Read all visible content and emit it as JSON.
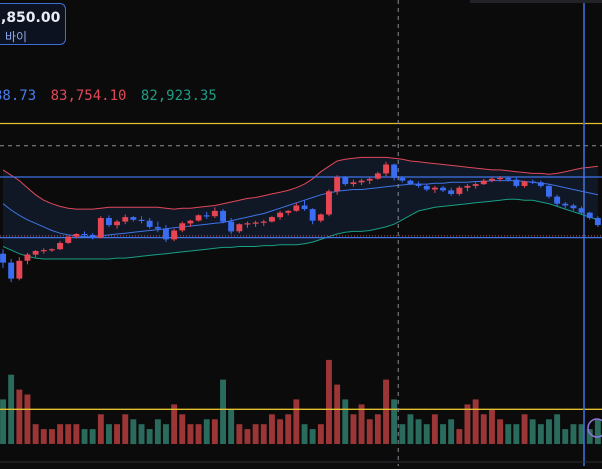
{
  "buy_box": {
    "price": ",850.00",
    "label": "바이"
  },
  "legend": [
    {
      "text": "38.73",
      "color": "#4a7cf0"
    },
    {
      "text": "83,754.10",
      "color": "#e0485a"
    },
    {
      "text": "82,923.35",
      "color": "#1f9c86"
    }
  ],
  "volume_pane_label": "2",
  "colors": {
    "background": "#0b0b0c",
    "up_candle": "#e64553",
    "down_candle": "#3b6df2",
    "bb_upper": "#e0485a",
    "bb_middle": "#3f74e6",
    "bb_lower": "#18a083",
    "horizontal_line": "#3f74e6",
    "yellow_line": "#e2c12c",
    "volume_up": "#9c3535",
    "volume_down": "#2a6b5e",
    "cursor_line": "#3f6fd8"
  },
  "chart_data": {
    "type": "candlestick",
    "title": "",
    "ylim": [
      82300,
      84600
    ],
    "series": [
      {
        "name": "candles",
        "ohlc": [
          [
            82820,
            82870,
            82660,
            82720
          ],
          [
            82720,
            82760,
            82500,
            82540
          ],
          [
            82540,
            82780,
            82520,
            82740
          ],
          [
            82740,
            82830,
            82700,
            82810
          ],
          [
            82810,
            82860,
            82780,
            82850
          ],
          [
            82850,
            82880,
            82820,
            82860
          ],
          [
            82860,
            82880,
            82840,
            82870
          ],
          [
            82870,
            82960,
            82860,
            82940
          ],
          [
            82940,
            83020,
            82930,
            83010
          ],
          [
            83010,
            83050,
            82990,
            83040
          ],
          [
            83040,
            83070,
            83010,
            83030
          ],
          [
            83030,
            83050,
            82980,
            83000
          ],
          [
            83000,
            83240,
            82990,
            83220
          ],
          [
            83220,
            83250,
            83120,
            83140
          ],
          [
            83140,
            83200,
            83100,
            83180
          ],
          [
            83180,
            83260,
            83150,
            83230
          ],
          [
            83230,
            83240,
            83180,
            83200
          ],
          [
            83200,
            83240,
            83160,
            83190
          ],
          [
            83190,
            83220,
            83100,
            83120
          ],
          [
            83120,
            83180,
            83060,
            83100
          ],
          [
            83100,
            83140,
            82950,
            82980
          ],
          [
            82980,
            83100,
            82960,
            83080
          ],
          [
            83080,
            83180,
            83060,
            83160
          ],
          [
            83160,
            83200,
            83120,
            83190
          ],
          [
            83190,
            83260,
            83180,
            83250
          ],
          [
            83250,
            83290,
            83210,
            83240
          ],
          [
            83240,
            83340,
            83220,
            83300
          ],
          [
            83300,
            83320,
            83160,
            83180
          ],
          [
            83180,
            83220,
            83040,
            83070
          ],
          [
            83070,
            83160,
            83050,
            83150
          ],
          [
            83150,
            83180,
            83110,
            83160
          ],
          [
            83160,
            83190,
            83120,
            83170
          ],
          [
            83170,
            83200,
            83130,
            83180
          ],
          [
            83180,
            83240,
            83170,
            83230
          ],
          [
            83230,
            83300,
            83200,
            83280
          ],
          [
            83280,
            83310,
            83250,
            83300
          ],
          [
            83300,
            83390,
            83290,
            83360
          ],
          [
            83360,
            83420,
            83300,
            83320
          ],
          [
            83320,
            83330,
            83150,
            83190
          ],
          [
            83190,
            83270,
            83170,
            83260
          ],
          [
            83260,
            83540,
            83240,
            83520
          ],
          [
            83520,
            83700,
            83480,
            83680
          ],
          [
            83680,
            83690,
            83580,
            83600
          ],
          [
            83600,
            83650,
            83570,
            83620
          ],
          [
            83620,
            83660,
            83590,
            83640
          ],
          [
            83640,
            83680,
            83600,
            83660
          ],
          [
            83660,
            83740,
            83650,
            83720
          ],
          [
            83720,
            83850,
            83690,
            83820
          ],
          [
            83820,
            83830,
            83640,
            83670
          ],
          [
            83670,
            83690,
            83620,
            83640
          ],
          [
            83640,
            83650,
            83590,
            83600
          ],
          [
            83600,
            83630,
            83560,
            83580
          ],
          [
            83580,
            83600,
            83520,
            83540
          ],
          [
            83540,
            83580,
            83500,
            83560
          ],
          [
            83560,
            83580,
            83510,
            83530
          ],
          [
            83530,
            83560,
            83470,
            83490
          ],
          [
            83490,
            83580,
            83470,
            83560
          ],
          [
            83560,
            83600,
            83520,
            83580
          ],
          [
            83580,
            83620,
            83550,
            83600
          ],
          [
            83600,
            83660,
            83590,
            83640
          ],
          [
            83640,
            83680,
            83620,
            83660
          ],
          [
            83660,
            83690,
            83630,
            83670
          ],
          [
            83670,
            83680,
            83630,
            83650
          ],
          [
            83650,
            83680,
            83560,
            83580
          ],
          [
            83580,
            83640,
            83560,
            83630
          ],
          [
            83630,
            83650,
            83600,
            83620
          ],
          [
            83620,
            83640,
            83560,
            83580
          ],
          [
            83580,
            83600,
            83440,
            83460
          ],
          [
            83460,
            83480,
            83350,
            83380
          ],
          [
            83380,
            83400,
            83330,
            83360
          ],
          [
            83360,
            83380,
            83300,
            83330
          ],
          [
            83330,
            83350,
            83260,
            83280
          ],
          [
            83280,
            83290,
            83200,
            83220
          ],
          [
            83220,
            83240,
            83120,
            83140
          ]
        ]
      },
      {
        "name": "bb_upper",
        "values": [
          83760,
          83700,
          83640,
          83560,
          83480,
          83420,
          83380,
          83350,
          83330,
          83320,
          83320,
          83320,
          83330,
          83340,
          83340,
          83340,
          83340,
          83340,
          83340,
          83340,
          83330,
          83320,
          83330,
          83330,
          83340,
          83350,
          83360,
          83380,
          83400,
          83420,
          83440,
          83450,
          83470,
          83490,
          83510,
          83530,
          83560,
          83600,
          83660,
          83740,
          83800,
          83860,
          83880,
          83890,
          83900,
          83900,
          83900,
          83900,
          83890,
          83880,
          83860,
          83850,
          83840,
          83830,
          83820,
          83810,
          83800,
          83790,
          83780,
          83770,
          83760,
          83760,
          83750,
          83740,
          83730,
          83720,
          83720,
          83710,
          83720,
          83740,
          83760,
          83780,
          83790,
          83800
        ]
      },
      {
        "name": "bb_middle",
        "values": [
          83380,
          83310,
          83250,
          83200,
          83160,
          83120,
          83080,
          83050,
          83030,
          83020,
          83010,
          83010,
          83020,
          83030,
          83040,
          83050,
          83060,
          83070,
          83080,
          83090,
          83100,
          83110,
          83120,
          83130,
          83140,
          83150,
          83160,
          83170,
          83190,
          83210,
          83230,
          83250,
          83270,
          83300,
          83330,
          83360,
          83390,
          83420,
          83450,
          83480,
          83500,
          83520,
          83530,
          83540,
          83540,
          83550,
          83560,
          83570,
          83580,
          83590,
          83600,
          83600,
          83600,
          83610,
          83610,
          83620,
          83620,
          83620,
          83630,
          83630,
          83640,
          83640,
          83640,
          83640,
          83630,
          83620,
          83610,
          83600,
          83580,
          83560,
          83540,
          83520,
          83500,
          83480
        ]
      },
      {
        "name": "bb_lower",
        "values": [
          82900,
          82860,
          82820,
          82790,
          82770,
          82760,
          82760,
          82760,
          82760,
          82760,
          82760,
          82760,
          82760,
          82760,
          82770,
          82770,
          82780,
          82790,
          82800,
          82810,
          82820,
          82830,
          82840,
          82850,
          82860,
          82870,
          82880,
          82890,
          82890,
          82900,
          82900,
          82900,
          82910,
          82910,
          82920,
          82920,
          82920,
          82930,
          82950,
          82980,
          83010,
          83040,
          83060,
          83070,
          83070,
          83080,
          83100,
          83120,
          83150,
          83200,
          83250,
          83300,
          83320,
          83340,
          83350,
          83360,
          83370,
          83380,
          83390,
          83400,
          83410,
          83420,
          83430,
          83430,
          83420,
          83420,
          83400,
          83380,
          83350,
          83320,
          83290,
          83260,
          83230,
          83200
        ]
      }
    ],
    "horizontal_lines": [
      {
        "value": 83680,
        "color": "#3f74e6"
      },
      {
        "value": 83000,
        "color": "#3f74e6"
      },
      {
        "value": 84280,
        "color": "#e2c12c"
      }
    ],
    "volume": [
      9,
      14,
      11,
      10,
      4,
      3,
      3,
      4,
      4,
      4,
      3,
      3,
      6,
      4,
      4,
      6,
      5,
      4,
      3,
      5,
      4,
      8,
      6,
      4,
      4,
      5,
      5,
      13,
      7,
      4,
      3,
      4,
      4,
      6,
      5,
      6,
      9,
      4,
      3,
      4,
      17,
      12,
      9,
      6,
      8,
      5,
      6,
      13,
      9,
      4,
      6,
      5,
      4,
      6,
      4,
      5,
      3,
      8,
      9,
      6,
      7,
      5,
      4,
      4,
      6,
      5,
      4,
      5,
      6,
      3,
      4,
      4,
      3,
      5
    ],
    "volume_ylim": [
      0,
      20
    ],
    "volume_threshold": 7,
    "cursor": {
      "vertical_dashed_index": 48,
      "crosshair_price": 84030
    }
  }
}
